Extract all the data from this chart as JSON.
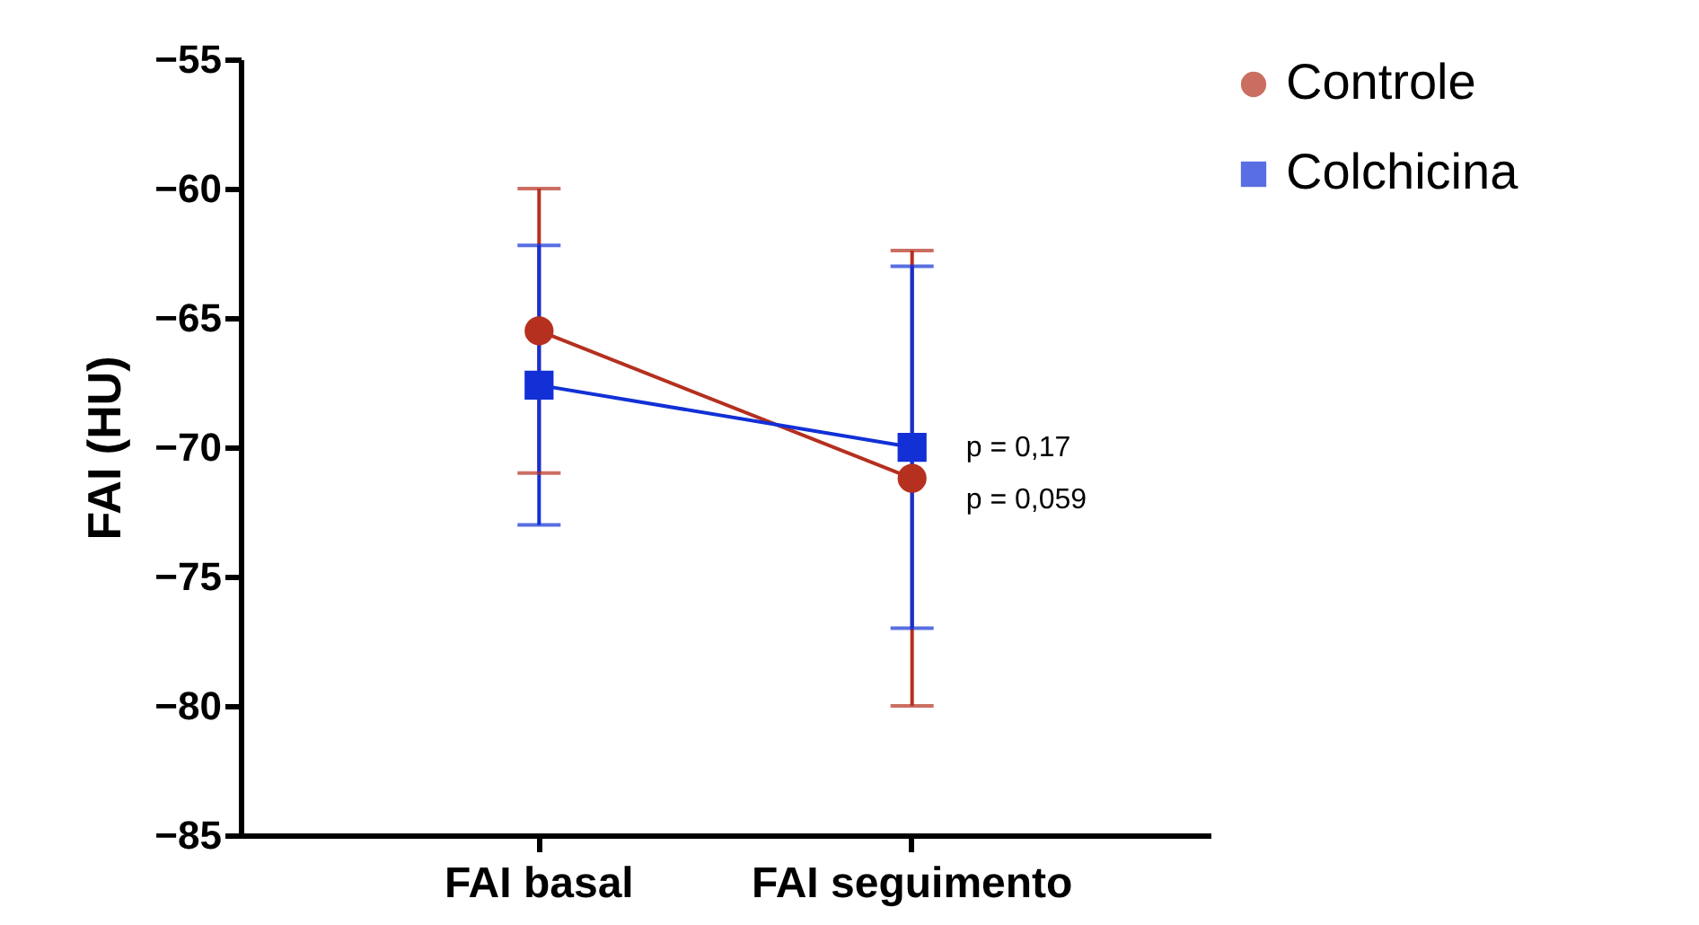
{
  "chart_data": {
    "type": "line",
    "ylabel": "FAI (HU)",
    "categories": [
      "FAI basal",
      "FAI seguimento"
    ],
    "series": [
      {
        "name": "Controle",
        "color": "#b5301f",
        "marker": "circle",
        "values": [
          -65.5,
          -71.2
        ],
        "errors": [
          [
            -71,
            -60
          ],
          [
            -80,
            -62.4
          ]
        ]
      },
      {
        "name": "Colchicina",
        "color": "#1230d6",
        "marker": "square",
        "values": [
          -67.6,
          -70
        ],
        "errors": [
          [
            -73,
            -62.2
          ],
          [
            -77,
            -63
          ]
        ]
      }
    ],
    "ylim": [
      -85,
      -55
    ],
    "yticks": [
      -85,
      -80,
      -75,
      -70,
      -65,
      -60,
      -55
    ],
    "grid": false,
    "legend": "top right",
    "annotations": [
      {
        "text": "p = 0,17",
        "x": "FAI seguimento",
        "y": -70
      },
      {
        "text": "p = 0,059",
        "x": "FAI seguimento",
        "y": -72
      }
    ]
  }
}
